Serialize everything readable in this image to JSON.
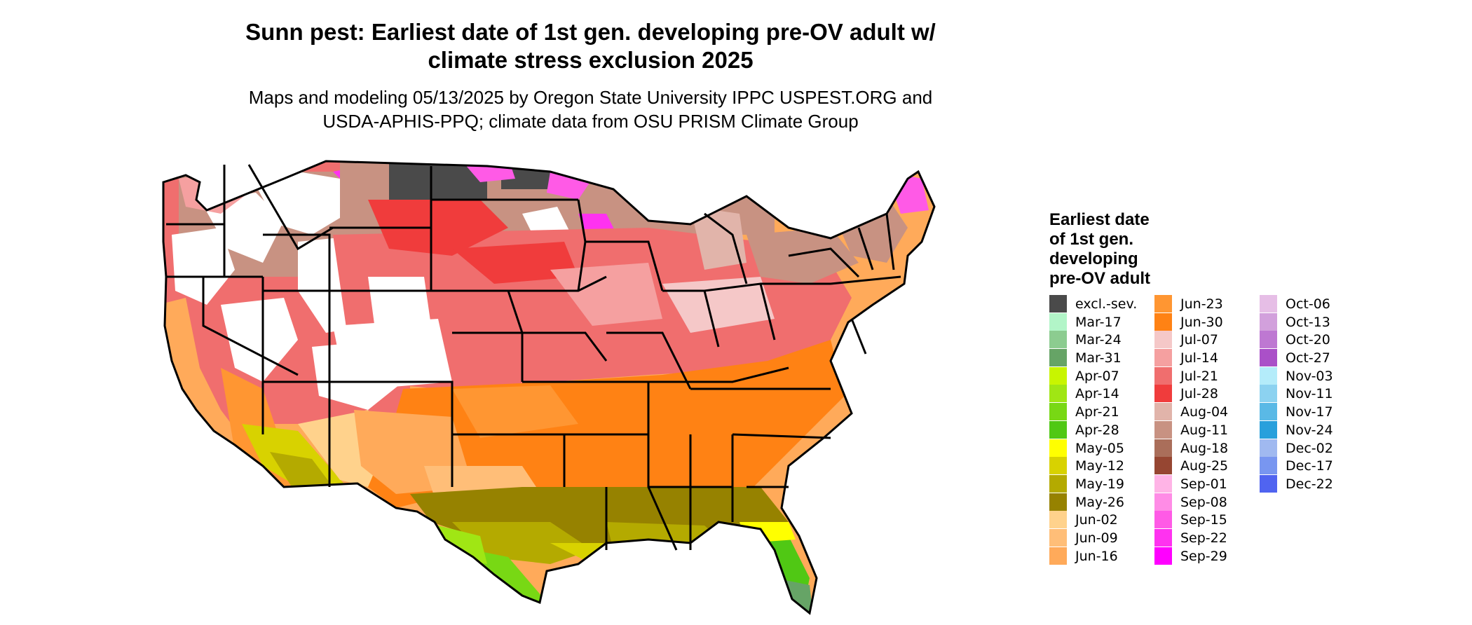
{
  "header": {
    "title_line1": "Sunn pest: Earliest date of 1st gen. developing pre-OV adult w/",
    "title_line2": "climate stress exclusion 2025",
    "subtitle_line1": "Maps and modeling 05/13/2025 by Oregon State University IPPC USPEST.ORG and",
    "subtitle_line2": "USDA-APHIS-PPQ; climate data from OSU PRISM Climate Group"
  },
  "legend": {
    "title_line1": "Earliest date",
    "title_line2": "of 1st gen.",
    "title_line3": "developing",
    "title_line4": "pre-OV adult",
    "items": [
      {
        "label": "excl.-sev.",
        "color": "#4a4a4a"
      },
      {
        "label": "Mar-17",
        "color": "#b2f5c8"
      },
      {
        "label": "Mar-24",
        "color": "#8ccc90"
      },
      {
        "label": "Mar-31",
        "color": "#66a466"
      },
      {
        "label": "Apr-07",
        "color": "#c8f500"
      },
      {
        "label": "Apr-14",
        "color": "#a0e614"
      },
      {
        "label": "Apr-21",
        "color": "#78d814"
      },
      {
        "label": "Apr-28",
        "color": "#50c814"
      },
      {
        "label": "May-05",
        "color": "#ffff00"
      },
      {
        "label": "May-12",
        "color": "#d8d200"
      },
      {
        "label": "May-19",
        "color": "#b4aa00"
      },
      {
        "label": "May-26",
        "color": "#968200"
      },
      {
        "label": "Jun-02",
        "color": "#ffd28c"
      },
      {
        "label": "Jun-09",
        "color": "#ffbe78"
      },
      {
        "label": "Jun-16",
        "color": "#ffaa5a"
      },
      {
        "label": "Jun-23",
        "color": "#ff9632"
      },
      {
        "label": "Jun-30",
        "color": "#ff8214"
      },
      {
        "label": "Jul-07",
        "color": "#f5c8c8"
      },
      {
        "label": "Jul-14",
        "color": "#f5a0a0"
      },
      {
        "label": "Jul-21",
        "color": "#f06e6e"
      },
      {
        "label": "Jul-28",
        "color": "#f03c3c"
      },
      {
        "label": "Aug-04",
        "color": "#e1b4aa"
      },
      {
        "label": "Aug-11",
        "color": "#c89282"
      },
      {
        "label": "Aug-18",
        "color": "#aa6e5a"
      },
      {
        "label": "Aug-25",
        "color": "#964632"
      },
      {
        "label": "Sep-01",
        "color": "#ffb4e6"
      },
      {
        "label": "Sep-08",
        "color": "#ff8ce6"
      },
      {
        "label": "Sep-15",
        "color": "#ff5ae6"
      },
      {
        "label": "Sep-22",
        "color": "#ff32f0"
      },
      {
        "label": "Sep-29",
        "color": "#ff00ff"
      },
      {
        "label": "Oct-06",
        "color": "#e6bee6"
      },
      {
        "label": "Oct-13",
        "color": "#d2a0dc"
      },
      {
        "label": "Oct-20",
        "color": "#be78d2"
      },
      {
        "label": "Oct-27",
        "color": "#aa50c8"
      },
      {
        "label": "Nov-03",
        "color": "#b4ecfa"
      },
      {
        "label": "Nov-11",
        "color": "#8cd2f0"
      },
      {
        "label": "Nov-17",
        "color": "#5ab9e6"
      },
      {
        "label": "Nov-24",
        "color": "#28a0dc"
      },
      {
        "label": "Dec-02",
        "color": "#a0b9f0"
      },
      {
        "label": "Dec-17",
        "color": "#7896f0"
      },
      {
        "label": "Dec-22",
        "color": "#5064f0"
      }
    ]
  }
}
